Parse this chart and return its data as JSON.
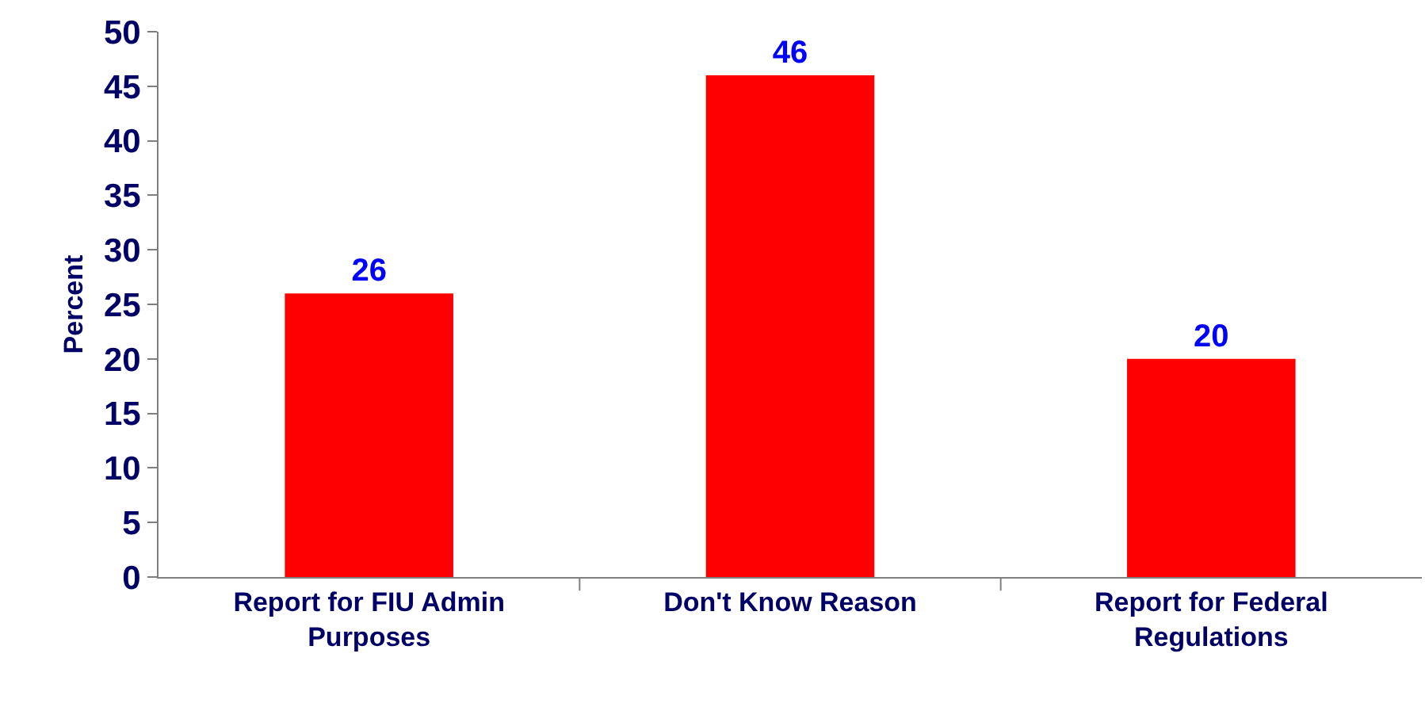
{
  "chart_data": {
    "type": "bar",
    "ylabel": "Percent",
    "categories": [
      "Report for FIU Admin Purposes",
      "Don't Know Reason",
      "Report for Federal Regulations"
    ],
    "values": [
      26,
      46,
      20
    ],
    "color": "#ff0000",
    "ylim": [
      0,
      50
    ],
    "yticks": [
      0,
      5,
      10,
      15,
      20,
      25,
      30,
      35,
      40,
      45,
      50
    ],
    "data_labels": true
  }
}
